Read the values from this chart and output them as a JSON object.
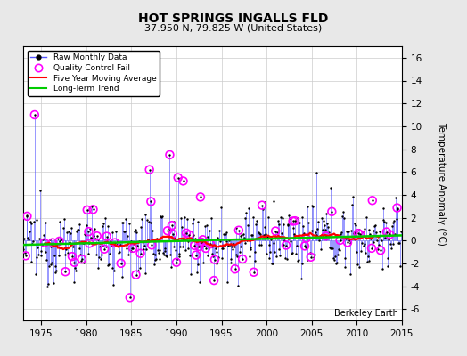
{
  "title": "HOT SPRINGS INGALLS FLD",
  "subtitle": "37.950 N, 79.825 W (United States)",
  "ylabel": "Temperature Anomaly (°C)",
  "watermark": "Berkeley Earth",
  "year_start": 1973,
  "year_end": 2015,
  "ylim": [
    -7,
    17
  ],
  "yticks": [
    -6,
    -4,
    -2,
    0,
    2,
    4,
    6,
    8,
    10,
    12,
    14,
    16
  ],
  "xticks": [
    1975,
    1980,
    1985,
    1990,
    1995,
    2000,
    2005,
    2010,
    2015
  ],
  "bg_color": "#e8e8e8",
  "plot_bg_color": "#ffffff",
  "raw_color": "#5555ff",
  "qc_color": "#ff00ff",
  "moving_avg_color": "#ff0000",
  "trend_color": "#00cc00",
  "seed": 12345
}
